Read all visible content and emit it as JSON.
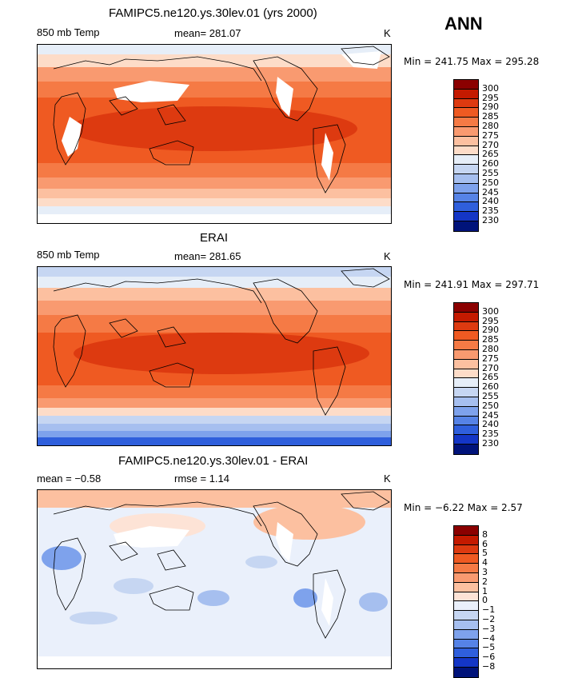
{
  "season": "ANN",
  "panels": [
    {
      "title": "FAMIPC5.ne120.ys.30lev.01 (yrs 2000)",
      "left_label": "850 mb Temp",
      "mid_label": "mean= 281.07",
      "units": "K",
      "minmax": "Min = 241.75 Max = 295.28",
      "levels": [
        "300",
        "295",
        "290",
        "285",
        "280",
        "275",
        "270",
        "265",
        "260",
        "255",
        "250",
        "245",
        "240",
        "235",
        "230"
      ],
      "colors": [
        "#8b0000",
        "#c41a00",
        "#dd3a10",
        "#ef5a22",
        "#f57a45",
        "#f99a70",
        "#fcc0a0",
        "#fddcc8",
        "#e6eef8",
        "#c6d6f2",
        "#a6bfef",
        "#7ea2ec",
        "#5683e6",
        "#2f5fdc",
        "#1436c6",
        "#00137a"
      ]
    },
    {
      "title": "ERAI",
      "left_label": "850 mb Temp",
      "mid_label": "mean= 281.65",
      "units": "K",
      "minmax": "Min = 241.91 Max = 297.71",
      "levels": [
        "300",
        "295",
        "290",
        "285",
        "280",
        "275",
        "270",
        "265",
        "260",
        "255",
        "250",
        "245",
        "240",
        "235",
        "230"
      ],
      "colors": [
        "#8b0000",
        "#c41a00",
        "#dd3a10",
        "#ef5a22",
        "#f57a45",
        "#f99a70",
        "#fcc0a0",
        "#fddcc8",
        "#e6eef8",
        "#c6d6f2",
        "#a6bfef",
        "#7ea2ec",
        "#5683e6",
        "#2f5fdc",
        "#1436c6",
        "#00137a"
      ]
    },
    {
      "title": "FAMIPC5.ne120.ys.30lev.01 - ERAI",
      "left_label": "mean =   −0.58",
      "mid_label": "rmse =    1.14",
      "units": "K",
      "minmax": "Min =  −6.22 Max =   2.57",
      "levels": [
        "8",
        "6",
        "5",
        "4",
        "3",
        "2",
        "1",
        "0",
        "−1",
        "−2",
        "−3",
        "−4",
        "−5",
        "−6",
        "−8"
      ],
      "colors": [
        "#8b0000",
        "#c41a00",
        "#dd3a10",
        "#ef5a22",
        "#f57a45",
        "#f99a70",
        "#fcc0a0",
        "#fde3d6",
        "#eaf0fb",
        "#c6d6f2",
        "#a6bfef",
        "#7ea2ec",
        "#5683e6",
        "#2f5fdc",
        "#1436c6",
        "#00137a"
      ]
    }
  ]
}
